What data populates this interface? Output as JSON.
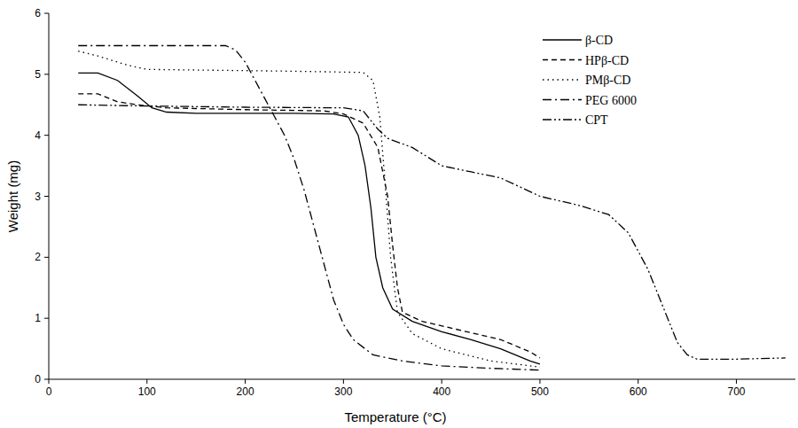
{
  "chart_data": {
    "type": "line",
    "x_label": "Temperature (°C)",
    "y_label": "Weight (mg)",
    "xlim": [
      0,
      760
    ],
    "ylim": [
      0,
      6
    ],
    "xticks": [
      0,
      100,
      200,
      300,
      400,
      500,
      600,
      700
    ],
    "yticks": [
      0,
      1,
      2,
      3,
      4,
      5,
      6
    ],
    "grid": false,
    "legend": "upper right",
    "series": [
      {
        "name": "β-CD",
        "color": "#000000",
        "line_style": "solid",
        "x": [
          30,
          50,
          70,
          90,
          105,
          120,
          150,
          200,
          250,
          290,
          305,
          315,
          322,
          328,
          333,
          340,
          350,
          370,
          400,
          430,
          460,
          490,
          500
        ],
        "values": [
          5.02,
          5.02,
          4.9,
          4.65,
          4.45,
          4.38,
          4.36,
          4.36,
          4.36,
          4.35,
          4.3,
          4.0,
          3.5,
          2.8,
          2.0,
          1.5,
          1.15,
          0.95,
          0.78,
          0.65,
          0.5,
          0.3,
          0.25
        ]
      },
      {
        "name": "HPβ-CD",
        "color": "#000000",
        "line_style": "dashed",
        "x": [
          30,
          50,
          70,
          90,
          120,
          200,
          280,
          300,
          320,
          335,
          345,
          350,
          355,
          360,
          380,
          420,
          460,
          490,
          500
        ],
        "values": [
          4.68,
          4.68,
          4.55,
          4.5,
          4.45,
          4.42,
          4.4,
          4.35,
          4.2,
          3.8,
          3.0,
          2.2,
          1.5,
          1.1,
          0.95,
          0.8,
          0.65,
          0.45,
          0.35
        ]
      },
      {
        "name": "PMβ-CD",
        "color": "#000000",
        "line_style": "dotted",
        "x": [
          30,
          50,
          80,
          100,
          150,
          250,
          320,
          330,
          337,
          342,
          348,
          355,
          370,
          400,
          450,
          500
        ],
        "values": [
          5.38,
          5.3,
          5.15,
          5.08,
          5.07,
          5.05,
          5.03,
          4.9,
          4.3,
          3.3,
          2.0,
          1.1,
          0.75,
          0.5,
          0.3,
          0.2
        ]
      },
      {
        "name": "PEG 6000",
        "color": "#000000",
        "line_style": "dashdot",
        "x": [
          30,
          100,
          180,
          190,
          200,
          210,
          220,
          230,
          240,
          250,
          260,
          270,
          280,
          290,
          300,
          310,
          330,
          360,
          400,
          450,
          500
        ],
        "values": [
          5.47,
          5.47,
          5.47,
          5.4,
          5.2,
          4.9,
          4.6,
          4.3,
          4.0,
          3.6,
          3.1,
          2.5,
          1.9,
          1.3,
          0.9,
          0.65,
          0.4,
          0.3,
          0.22,
          0.18,
          0.15
        ]
      },
      {
        "name": "CPT",
        "color": "#000000",
        "line_style": "dashdotdot",
        "x": [
          30,
          100,
          200,
          300,
          320,
          335,
          345,
          370,
          400,
          430,
          460,
          480,
          500,
          540,
          570,
          590,
          610,
          630,
          640,
          650,
          660,
          700,
          750
        ],
        "values": [
          4.5,
          4.48,
          4.46,
          4.45,
          4.4,
          4.1,
          3.95,
          3.8,
          3.5,
          3.4,
          3.3,
          3.15,
          3.0,
          2.85,
          2.7,
          2.4,
          1.8,
          1.0,
          0.6,
          0.4,
          0.33,
          0.33,
          0.35
        ]
      }
    ]
  }
}
